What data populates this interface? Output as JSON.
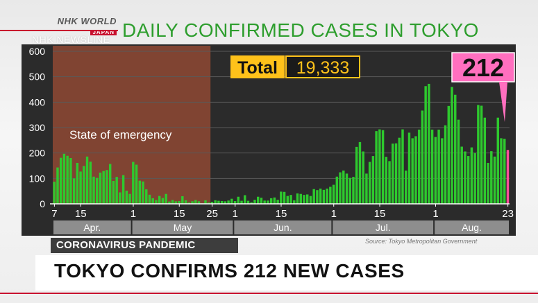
{
  "broadcaster": {
    "logo_line1": "NHK WORLD",
    "logo_line2": "JAPAN",
    "program": "NHK NEWSLINE"
  },
  "title": "DAILY CONFIRMED CASES IN TOKYO",
  "topic_label": "CORONAVIRUS PANDEMIC",
  "headline": "TOKYO CONFIRMS 212 NEW CASES",
  "source": "Source: Tokyo Metropolitan Government",
  "colors": {
    "bars": "#2ec92e",
    "last_bar": "#ff4f9a",
    "emergency": "#8a4733",
    "total_box": "#ffc21a",
    "callout": "#ff6fbf",
    "title_green": "#2e9e2e"
  },
  "chart_data": {
    "type": "bar",
    "title": "DAILY CONFIRMED CASES IN TOKYO",
    "ylim": [
      0,
      600
    ],
    "yticks": [
      0,
      100,
      200,
      300,
      400,
      500,
      600
    ],
    "grid": true,
    "start_date": "Apr. 7",
    "end_date": "Aug. 23",
    "tick_labels": [
      {
        "day": 0,
        "label": "7"
      },
      {
        "day": 8,
        "label": "15"
      },
      {
        "day": 24,
        "label": "1"
      },
      {
        "day": 38,
        "label": "15"
      },
      {
        "day": 48,
        "label": "25"
      },
      {
        "day": 55,
        "label": "1"
      },
      {
        "day": 69,
        "label": "15"
      },
      {
        "day": 85,
        "label": "1"
      },
      {
        "day": 99,
        "label": "15"
      },
      {
        "day": 116,
        "label": "1"
      },
      {
        "day": 138,
        "label": "23"
      }
    ],
    "months": [
      {
        "label": "Apr.",
        "from": 0,
        "to": 23
      },
      {
        "label": "May",
        "from": 24,
        "to": 54
      },
      {
        "label": "Jun.",
        "from": 55,
        "to": 84
      },
      {
        "label": "Jul.",
        "from": 85,
        "to": 115
      },
      {
        "label": "Aug.",
        "from": 116,
        "to": 138
      }
    ],
    "annotation": {
      "label": "State of emergency",
      "from": 0,
      "to": 48
    },
    "total_label": "Total",
    "total_value": "19,333",
    "callout_value": "212",
    "values": [
      87,
      143,
      181,
      197,
      189,
      180,
      100,
      161,
      127,
      149,
      186,
      166,
      107,
      102,
      123,
      129,
      133,
      157,
      90,
      106,
      45,
      113,
      52,
      39,
      165,
      154,
      91,
      88,
      57,
      36,
      22,
      15,
      31,
      23,
      39,
      9,
      15,
      10,
      11,
      30,
      14,
      5,
      10,
      15,
      10,
      2,
      14,
      5,
      8,
      14,
      12,
      11,
      10,
      13,
      20,
      11,
      28,
      12,
      34,
      12,
      6,
      16,
      28,
      24,
      13,
      13,
      22,
      25,
      16,
      48,
      47,
      31,
      35,
      14,
      41,
      39,
      35,
      37,
      31,
      58,
      54,
      60,
      55,
      60,
      67,
      75,
      107,
      124,
      131,
      119,
      102,
      106,
      224,
      243,
      206,
      119,
      165,
      188,
      286,
      293,
      290,
      185,
      168,
      237,
      238,
      260,
      293,
      131,
      280,
      258,
      266,
      292,
      367,
      463,
      472,
      292,
      263,
      292,
      258,
      309,
      385,
      460,
      429,
      331,
      225,
      206,
      188,
      222,
      200,
      389,
      386,
      339,
      161,
      207,
      186,
      339,
      258,
      256,
      212
    ]
  }
}
